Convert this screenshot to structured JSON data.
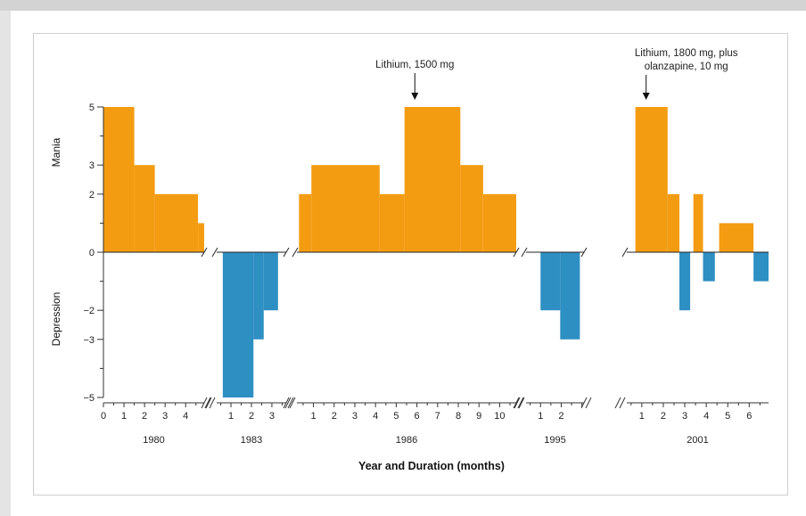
{
  "chart_data": {
    "type": "bar",
    "xlabel": "Year and Duration (months)",
    "ylabel_top": "Mania",
    "ylabel_bottom": "Depression",
    "y_ticks": [
      5,
      3,
      2,
      0,
      -2,
      -3,
      -5
    ],
    "y_tick_labels": [
      "5",
      "3",
      "2",
      "0",
      "−2",
      "−3",
      "−5"
    ],
    "colors": {
      "mania": "#f39c12",
      "depression": "#2e8fc2"
    },
    "panels": [
      {
        "year": "1980",
        "x_range": [
          0,
          4.9
        ],
        "tick_labels": [
          "0",
          "1",
          "2",
          "3",
          "4"
        ],
        "segments": [
          {
            "start": 0.0,
            "end": 1.5,
            "value": 5
          },
          {
            "start": 1.5,
            "end": 2.5,
            "value": 3
          },
          {
            "start": 2.5,
            "end": 4.6,
            "value": 2
          },
          {
            "start": 4.6,
            "end": 4.9,
            "value": 1
          }
        ]
      },
      {
        "year": "1983",
        "x_range": [
          0.3,
          3.7
        ],
        "tick_labels": [
          "1",
          "2",
          "3"
        ],
        "segments": [
          {
            "start": 0.6,
            "end": 2.1,
            "value": -5
          },
          {
            "start": 2.1,
            "end": 2.6,
            "value": -3
          },
          {
            "start": 2.6,
            "end": 3.3,
            "value": -2
          }
        ]
      },
      {
        "year": "1986",
        "x_range": [
          0.2,
          10.8
        ],
        "tick_labels": [
          "1",
          "2",
          "3",
          "4",
          "5",
          "6",
          "7",
          "8",
          "9",
          "10"
        ],
        "segments": [
          {
            "start": 0.3,
            "end": 0.9,
            "value": 2
          },
          {
            "start": 0.9,
            "end": 4.2,
            "value": 3
          },
          {
            "start": 4.2,
            "end": 5.4,
            "value": 2
          },
          {
            "start": 5.4,
            "end": 8.1,
            "value": 5
          },
          {
            "start": 8.1,
            "end": 9.2,
            "value": 3
          },
          {
            "start": 9.2,
            "end": 10.8,
            "value": 2
          }
        ],
        "annotation": {
          "text": "Lithium, 1500 mg",
          "x": 5.9
        }
      },
      {
        "year": "1995",
        "x_range": [
          0.3,
          3.1
        ],
        "tick_labels": [
          "1",
          "2"
        ],
        "segments": [
          {
            "start": 1.0,
            "end": 1.95,
            "value": -2
          },
          {
            "start": 1.95,
            "end": 2.9,
            "value": -3
          }
        ]
      },
      {
        "year": "2001",
        "x_range": [
          0.3,
          6.9
        ],
        "tick_labels": [
          "1",
          "2",
          "3",
          "4",
          "5",
          "6"
        ],
        "segments": [
          {
            "start": 0.7,
            "end": 2.2,
            "value": 5
          },
          {
            "start": 2.2,
            "end": 2.75,
            "value": 2
          },
          {
            "start": 2.75,
            "end": 3.25,
            "value": -2
          },
          {
            "start": 3.4,
            "end": 3.85,
            "value": 2
          },
          {
            "start": 3.85,
            "end": 4.4,
            "value": -1
          },
          {
            "start": 4.6,
            "end": 6.2,
            "value": 1
          },
          {
            "start": 6.2,
            "end": 6.9,
            "value": -1
          }
        ],
        "annotation": {
          "text_line1": "Lithium, 1800 mg, plus",
          "text_line2": "olanzapine, 10 mg",
          "x": 1.2
        }
      }
    ]
  }
}
